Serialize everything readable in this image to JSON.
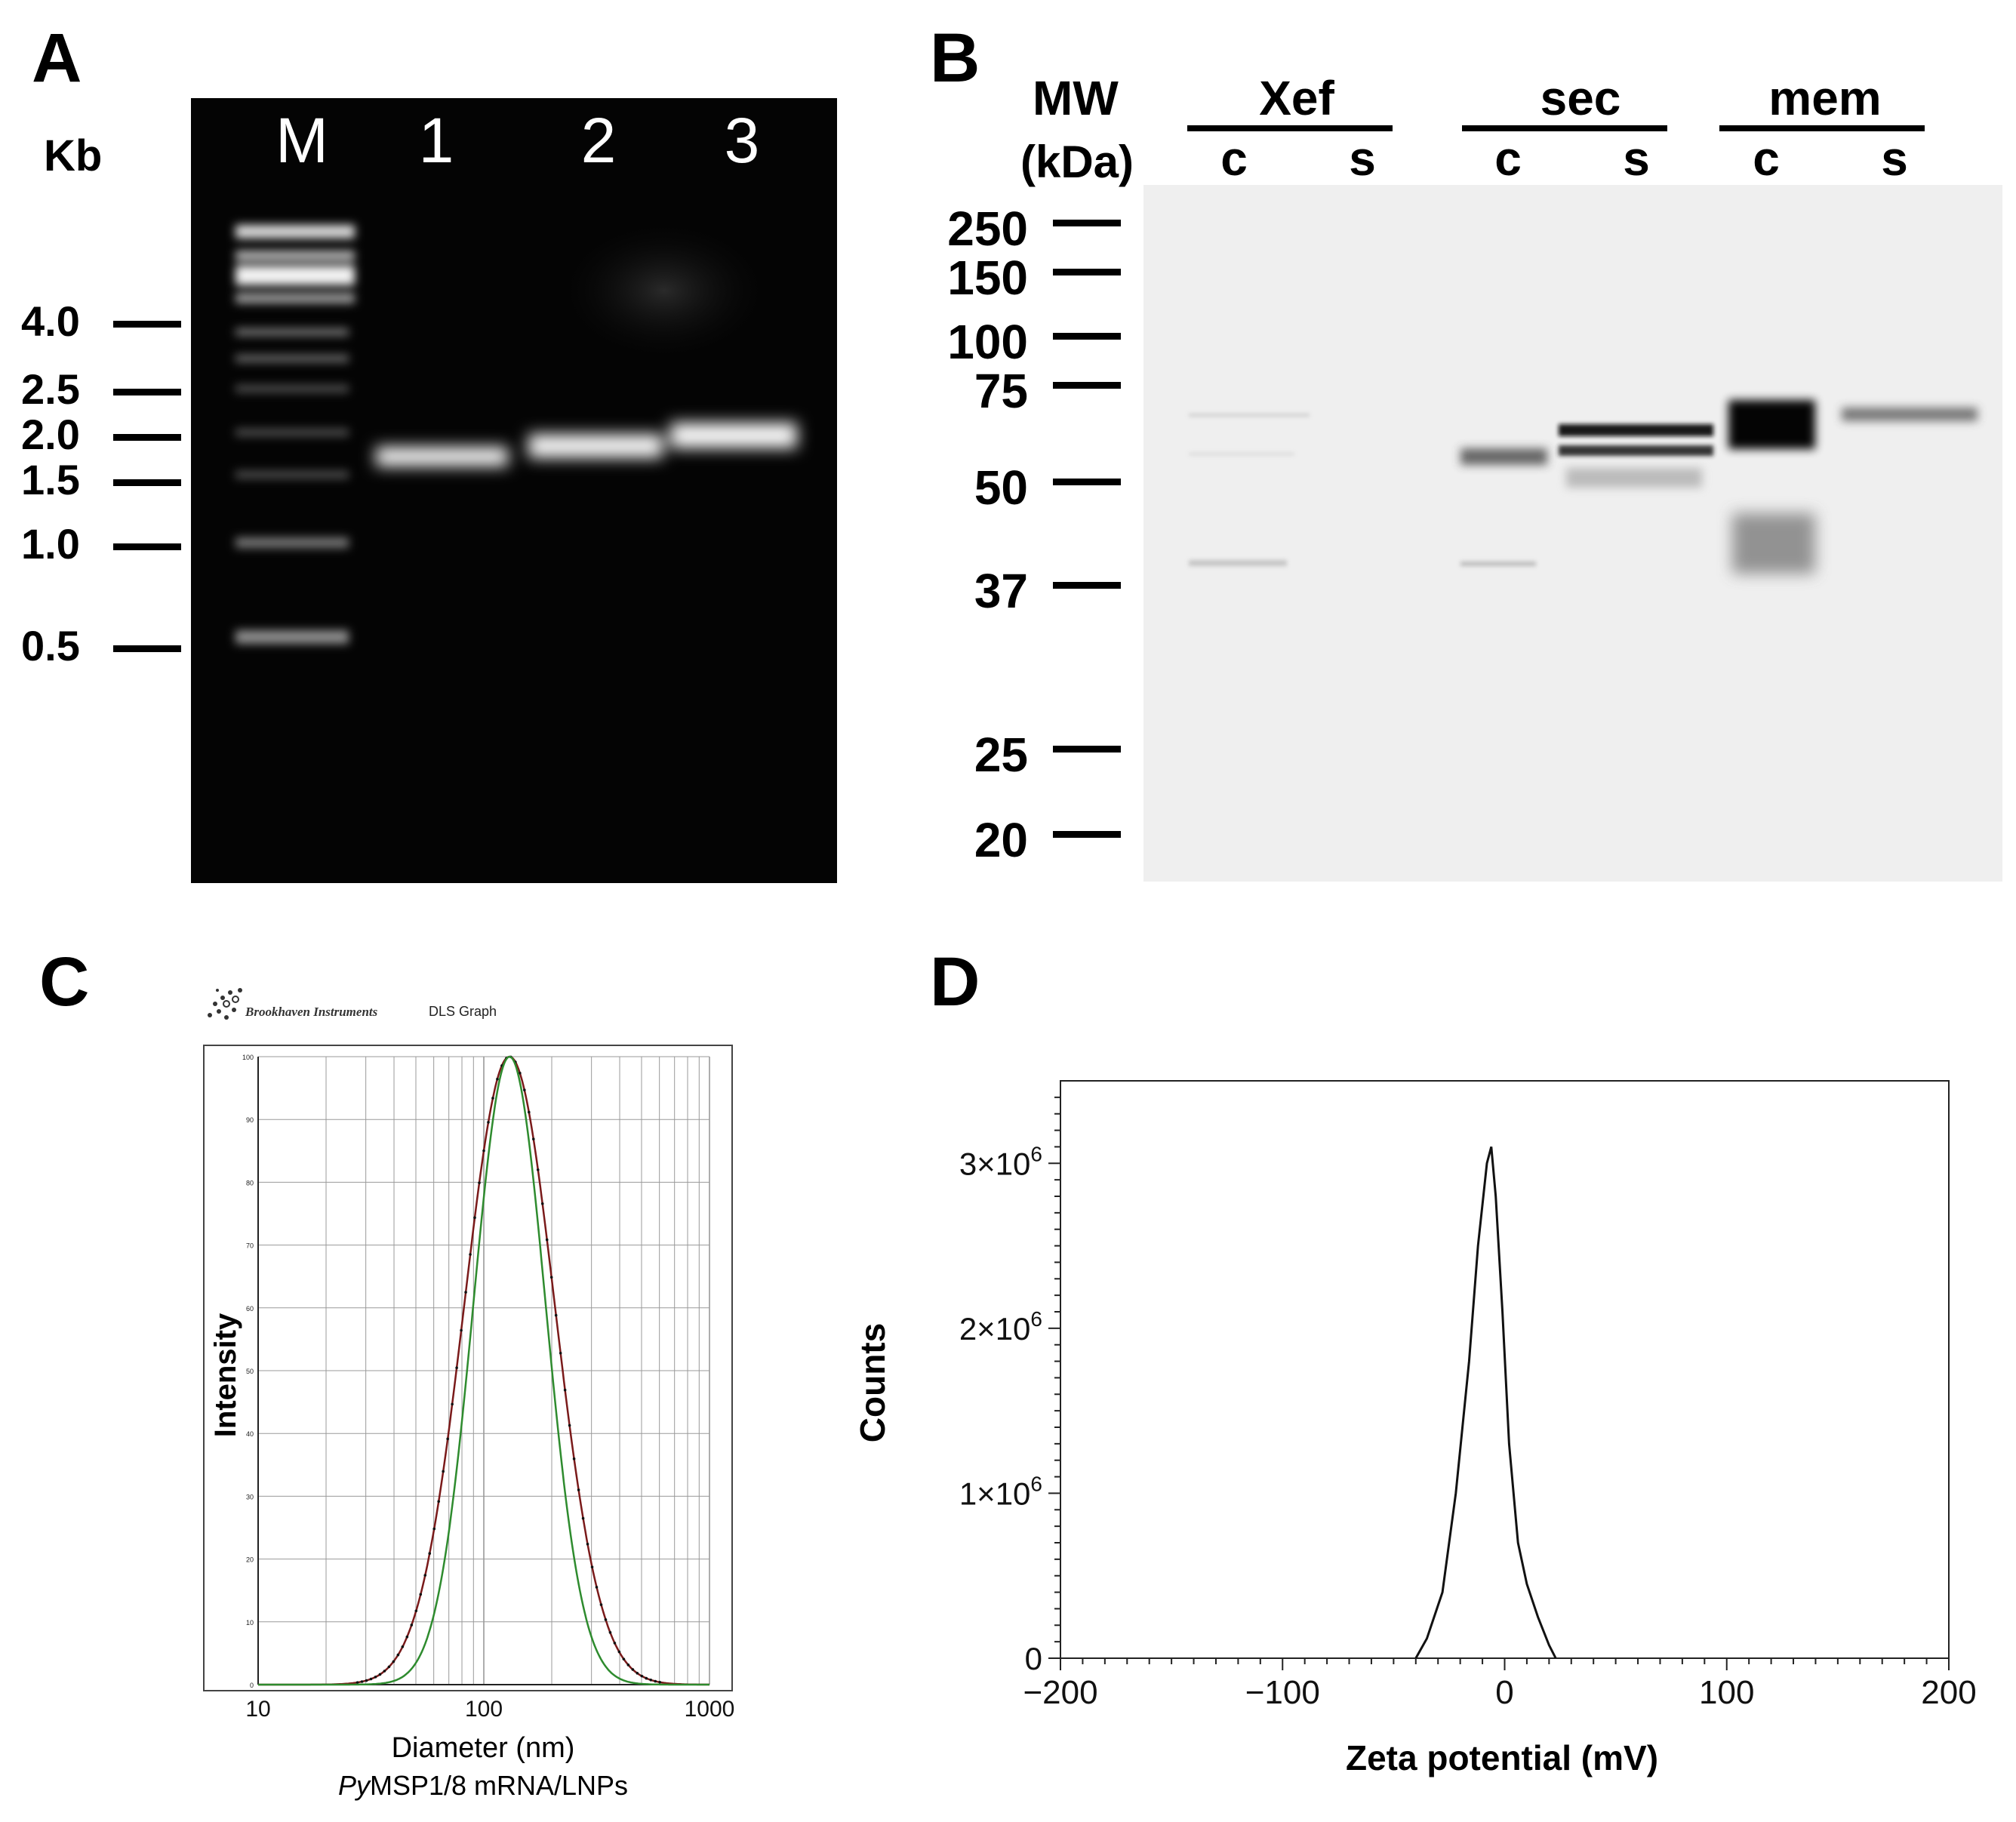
{
  "panel_a": {
    "letter": "A",
    "unit_label": "Kb",
    "lane_labels": [
      "M",
      "1",
      "2",
      "3"
    ],
    "markers": [
      "4.0",
      "2.5",
      "2.0",
      "1.5",
      "1.0",
      "0.5"
    ]
  },
  "panel_b": {
    "letter": "B",
    "mw_label": "MW",
    "mw_unit": "(kDa)",
    "groups": [
      {
        "name": "Xef",
        "lanes": [
          "c",
          "s"
        ]
      },
      {
        "name": "sec",
        "lanes": [
          "c",
          "s"
        ]
      },
      {
        "name": "mem",
        "lanes": [
          "c",
          "s"
        ]
      }
    ],
    "markers": [
      "250",
      "150",
      "100",
      "75",
      "50",
      "37",
      "25",
      "20"
    ]
  },
  "panel_c": {
    "letter": "C",
    "logo_text": "Brookhaven Instruments",
    "graph_title": "DLS Graph",
    "caption_italic": "Py",
    "caption_rest": "MSP1/8 mRNA/LNPs",
    "chart_data": {
      "type": "line",
      "xlabel": "Diameter (nm)",
      "ylabel": "Intensity",
      "x_scale": "log",
      "xlim": [
        10,
        1000
      ],
      "ylim": [
        0,
        100
      ],
      "x_ticks": [
        "10",
        "100",
        "1000"
      ],
      "y_ticks": [
        "0",
        "10",
        "20",
        "30",
        "40",
        "50",
        "60",
        "70",
        "80",
        "90",
        "100"
      ],
      "grid": true,
      "series": [
        {
          "color": "#7a1a1a",
          "peak_x": 130,
          "peak_y": 100,
          "log_sigma": 0.2
        },
        {
          "color": "#2e8b2e",
          "peak_x": 130,
          "peak_y": 100,
          "log_sigma": 0.16
        }
      ]
    }
  },
  "panel_d": {
    "letter": "D",
    "chart_data": {
      "type": "line",
      "xlabel": "Zeta potential (mV)",
      "ylabel": "Counts",
      "xlim": [
        -200,
        200
      ],
      "ylim": [
        0,
        3500000
      ],
      "x_ticks": [
        "−200",
        "−100",
        "0",
        "100",
        "200"
      ],
      "y_ticks": [
        "0",
        "1×10^6",
        "2×10^6",
        "3×10^6"
      ],
      "series": [
        {
          "x": [
            -40,
            -35,
            -28,
            -22,
            -16,
            -12,
            -8,
            -6,
            -4,
            -1,
            2,
            6,
            10,
            15,
            20,
            23
          ],
          "y": [
            0,
            120000,
            400000,
            1000000,
            1800000,
            2500000,
            3000000,
            3100000,
            2800000,
            2100000,
            1300000,
            700000,
            450000,
            250000,
            80000,
            0
          ]
        }
      ]
    }
  }
}
